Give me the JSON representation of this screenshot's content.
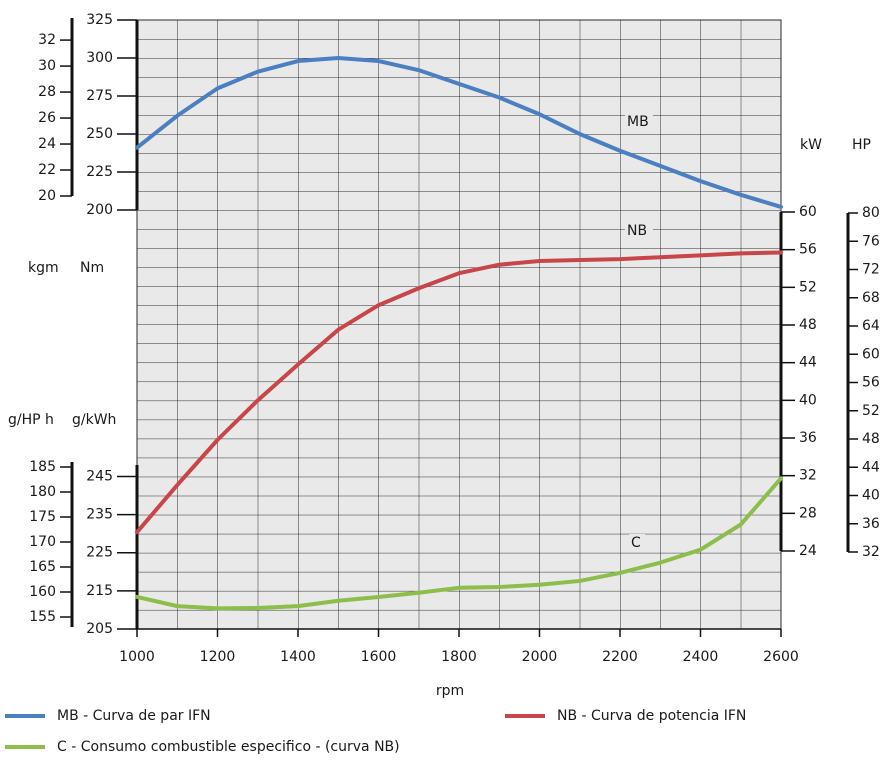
{
  "chart_data": {
    "type": "line",
    "x": [
      1000,
      1100,
      1200,
      1300,
      1400,
      1500,
      1600,
      1700,
      1800,
      1900,
      2000,
      2100,
      2200,
      2300,
      2400,
      2500,
      2600
    ],
    "xlim": [
      1000,
      2600
    ],
    "xticks": [
      1000,
      1200,
      1400,
      1600,
      1800,
      2000,
      2200,
      2400,
      2600
    ],
    "xlabel": "rpm",
    "ylabel": "Nm",
    "ylim": [
      200,
      325
    ],
    "yticks": [
      200,
      225,
      250,
      275,
      300,
      325
    ],
    "y2label": "kW",
    "y2lim": [
      24,
      60
    ],
    "y2ticks": [
      24,
      28,
      32,
      36,
      40,
      44,
      48,
      52,
      56,
      60
    ],
    "y3label": "g/kWh",
    "y3lim": [
      205,
      248
    ],
    "y3ticks": [
      205,
      215,
      225,
      235,
      245
    ],
    "y4label": "kgm",
    "y4lim": [
      20,
      33.7
    ],
    "y4ticks": [
      20,
      22,
      24,
      26,
      28,
      30,
      32
    ],
    "y5label": "HP",
    "y5lim": [
      32,
      80
    ],
    "y5ticks": [
      32,
      36,
      40,
      44,
      48,
      52,
      56,
      60,
      64,
      68,
      72,
      76,
      80
    ],
    "y6label": "g/HP h",
    "y6lim": [
      153,
      186
    ],
    "y6ticks": [
      155,
      160,
      165,
      170,
      175,
      180,
      185
    ],
    "grid": true,
    "annotations": [
      "MB",
      "NB",
      "C"
    ],
    "series": [
      {
        "name": "MB - Curva de par IFN",
        "color": "#4a7fc1",
        "axis": "y",
        "values": [
          241,
          262,
          280,
          291,
          298,
          300,
          298,
          292,
          283,
          274,
          263,
          250,
          239,
          229,
          219,
          210,
          202
        ]
      },
      {
        "name": "NB - Curva de potencia IFN",
        "color": "#c8464a",
        "axis": "y2",
        "values": [
          26,
          31,
          35.8,
          40,
          43.8,
          47.5,
          50.1,
          51.9,
          53.5,
          54.4,
          54.8,
          54.9,
          55,
          55.2,
          55.4,
          55.6,
          55.7
        ]
      },
      {
        "name": "C - Consumo combustible especifico - (curva NB)",
        "color": "#8dbd4a",
        "axis": "y3",
        "values": [
          213.4,
          211,
          210.4,
          210.5,
          211,
          212.4,
          213.4,
          214.5,
          215.8,
          216,
          216.6,
          217.6,
          219.7,
          222.4,
          225.8,
          232.4,
          244.5
        ]
      }
    ]
  }
}
